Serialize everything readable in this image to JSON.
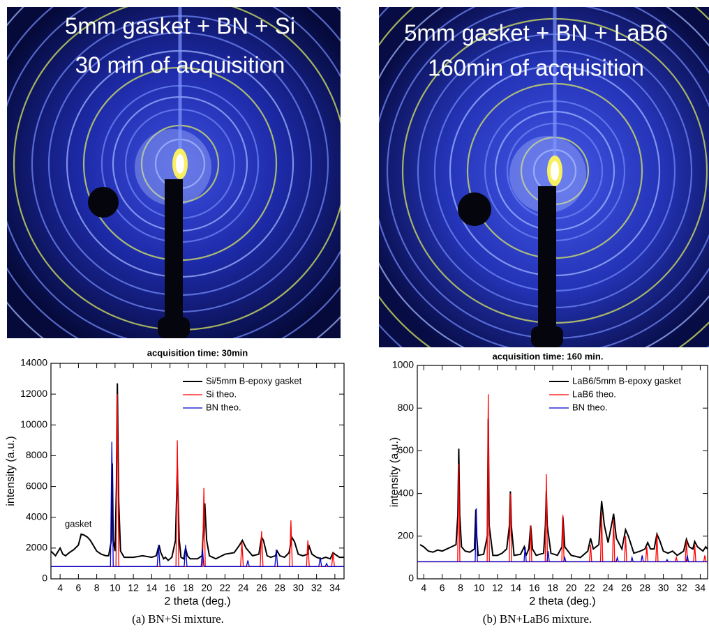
{
  "images": [
    {
      "title_lines": [
        "5mm gasket + BN + Si",
        "30 min of acquisition"
      ]
    },
    {
      "title_lines": [
        "5mm gasket + BN + LaB6",
        "160min of acquisition"
      ]
    }
  ],
  "chart_data": [
    {
      "type": "line",
      "title": "acquisition time: 30min",
      "xlabel": "2 theta (deg.)",
      "ylabel": "intensity (a.u.)",
      "annotation": "gasket",
      "xlim": [
        3,
        35
      ],
      "ylim": [
        0,
        14000
      ],
      "xticks": [
        4,
        6,
        8,
        10,
        12,
        14,
        16,
        18,
        20,
        22,
        24,
        26,
        28,
        30,
        32,
        34
      ],
      "yticks": [
        0,
        2000,
        4000,
        6000,
        8000,
        10000,
        12000,
        14000
      ],
      "legend": "upper right",
      "series": [
        {
          "name": "Si/5mm B-epoxy gasket",
          "color": "#000000",
          "x": [
            3,
            3.5,
            4,
            4.3,
            4.6,
            5,
            5.5,
            6,
            6.3,
            6.6,
            7,
            7.3,
            7.6,
            8,
            8.5,
            9,
            9.3,
            9.6,
            9.7,
            9.8,
            10,
            10.15,
            10.25,
            10.4,
            10.6,
            11,
            12,
            13,
            14,
            14.5,
            14.8,
            15,
            15.3,
            15.5,
            15.8,
            16.2,
            16.6,
            16.8,
            17,
            17.2,
            17.5,
            17.7,
            17.9,
            18.2,
            19,
            19.5,
            19.8,
            20,
            20.3,
            21,
            22,
            23,
            23.6,
            23.9,
            24.3,
            25,
            25.7,
            26,
            26.2,
            26.6,
            27,
            27.5,
            27.7,
            28,
            28.5,
            29,
            29.3,
            29.6,
            30,
            30.5,
            31,
            31.2,
            31.5,
            32,
            32.5,
            33,
            33.5,
            33.8,
            34,
            34.5,
            35
          ],
          "values": [
            1800,
            1500,
            2000,
            1600,
            1500,
            1700,
            1900,
            2200,
            2900,
            2850,
            2700,
            2500,
            2200,
            1800,
            1600,
            1500,
            1500,
            2500,
            7500,
            2500,
            1800,
            6000,
            12700,
            5000,
            1800,
            1400,
            1400,
            1500,
            1400,
            1500,
            2200,
            1700,
            1300,
            1400,
            1200,
            1400,
            2500,
            7200,
            2600,
            1400,
            1300,
            2000,
            1500,
            1300,
            1300,
            1500,
            4900,
            2500,
            1500,
            1300,
            1600,
            1700,
            2200,
            2500,
            2000,
            1500,
            1600,
            2700,
            2500,
            1500,
            1400,
            1500,
            1800,
            1500,
            1400,
            1700,
            2700,
            2400,
            1600,
            1500,
            1600,
            2100,
            1600,
            1400,
            1300,
            1400,
            1300,
            1700,
            1600,
            1400,
            1400
          ]
        },
        {
          "name": "Si theo.",
          "color": "#ff0000",
          "x": [
            3,
            10.1,
            10.25,
            10.4,
            16.65,
            16.8,
            16.95,
            19.55,
            19.7,
            19.85,
            23.7,
            23.85,
            24.0,
            25.85,
            26.0,
            26.15,
            29.05,
            29.2,
            29.35,
            30.9,
            31.05,
            31.2,
            33.65,
            33.8,
            33.95,
            35
          ],
          "values": [
            800,
            800,
            12000,
            800,
            800,
            9000,
            800,
            800,
            5900,
            800,
            800,
            2400,
            800,
            800,
            3100,
            800,
            800,
            3800,
            800,
            800,
            2500,
            800,
            800,
            1700,
            800,
            800
          ]
        },
        {
          "name": "BN theo.",
          "color": "#0000cc",
          "x": [
            3,
            9.5,
            9.65,
            9.8,
            14.6,
            14.75,
            14.9,
            17.55,
            17.7,
            17.85,
            19.4,
            19.55,
            19.7,
            24.35,
            24.5,
            24.65,
            27.45,
            27.6,
            27.75,
            32.25,
            32.4,
            32.55,
            32.95,
            33.1,
            33.25,
            35
          ],
          "values": [
            800,
            800,
            8900,
            800,
            800,
            2200,
            800,
            800,
            2200,
            800,
            800,
            1900,
            800,
            800,
            1200,
            800,
            800,
            1900,
            800,
            800,
            1400,
            800,
            800,
            1000,
            800,
            800
          ]
        }
      ]
    },
    {
      "type": "line",
      "title": "acquisition time: 160 min.",
      "xlabel": "2 theta (deg.)",
      "ylabel": "intensity (a.u.)",
      "xlim": [
        3.3,
        34.8
      ],
      "ylim": [
        0,
        1000
      ],
      "xticks": [
        4,
        6,
        8,
        10,
        12,
        14,
        16,
        18,
        20,
        22,
        24,
        26,
        28,
        30,
        32,
        34
      ],
      "yticks": [
        0,
        200,
        400,
        600,
        800,
        1000
      ],
      "legend": "upper right",
      "series": [
        {
          "name": "LaB6/5mm B-epoxy gasket",
          "color": "#000000",
          "x": [
            3.6,
            4,
            4.5,
            5,
            5.5,
            6,
            6.5,
            7,
            7.5,
            7.7,
            7.8,
            7.9,
            8.1,
            8.5,
            9,
            9.5,
            9.65,
            9.75,
            9.9,
            10.5,
            10.9,
            11.0,
            11.1,
            11.5,
            12,
            12.5,
            13,
            13.3,
            13.4,
            13.5,
            13.8,
            14.5,
            14.9,
            15.1,
            15.4,
            15.6,
            15.8,
            16.2,
            17,
            17.2,
            17.3,
            17.4,
            17.8,
            18.5,
            19.0,
            19.1,
            19.3,
            20,
            21,
            21.8,
            22.1,
            22.4,
            23,
            23.3,
            23.6,
            24,
            24.5,
            24.6,
            24.9,
            25.5,
            25.9,
            26.2,
            26.8,
            27.5,
            28,
            28.3,
            28.6,
            29,
            29.3,
            29.6,
            30,
            30.5,
            31,
            31.5,
            32.2,
            32.5,
            32.8,
            33.2,
            33.4,
            33.7,
            34,
            34.3,
            34.6,
            34.8
          ],
          "values": [
            160,
            150,
            130,
            125,
            135,
            130,
            140,
            150,
            160,
            300,
            610,
            300,
            150,
            130,
            125,
            140,
            325,
            200,
            110,
            115,
            200,
            750,
            250,
            110,
            110,
            120,
            140,
            250,
            410,
            250,
            110,
            115,
            150,
            110,
            140,
            250,
            140,
            110,
            120,
            250,
            410,
            250,
            120,
            110,
            150,
            290,
            150,
            110,
            100,
            130,
            190,
            140,
            160,
            365,
            250,
            170,
            280,
            305,
            190,
            140,
            230,
            200,
            120,
            130,
            140,
            170,
            140,
            140,
            210,
            180,
            130,
            120,
            130,
            110,
            130,
            185,
            150,
            140,
            175,
            150,
            140,
            130,
            150,
            140
          ]
        },
        {
          "name": "LaB6 theo.",
          "color": "#ff0000",
          "x": [
            3.3,
            7.68,
            7.8,
            7.92,
            10.88,
            11.0,
            11.12,
            13.28,
            13.4,
            13.52,
            15.48,
            15.6,
            15.72,
            17.18,
            17.3,
            17.42,
            18.98,
            19.1,
            19.22,
            21.98,
            22.1,
            22.22,
            23.18,
            23.3,
            23.42,
            24.48,
            24.6,
            24.72,
            25.78,
            25.9,
            26.02,
            28.08,
            28.2,
            28.32,
            29.18,
            29.3,
            29.42,
            31.28,
            31.4,
            31.52,
            32.38,
            32.5,
            32.62,
            33.28,
            33.4,
            33.52,
            34.38,
            34.5,
            34.62,
            34.8
          ],
          "values": [
            80,
            80,
            540,
            80,
            80,
            865,
            80,
            80,
            400,
            80,
            80,
            250,
            80,
            80,
            490,
            80,
            80,
            300,
            80,
            80,
            160,
            80,
            80,
            310,
            80,
            80,
            280,
            80,
            80,
            200,
            80,
            80,
            150,
            80,
            80,
            210,
            80,
            80,
            100,
            80,
            80,
            180,
            80,
            80,
            160,
            80,
            80,
            110,
            80,
            80
          ]
        },
        {
          "name": "BN theo.",
          "color": "#0000cc",
          "x": [
            3.3,
            9.58,
            9.7,
            9.82,
            14.88,
            15.0,
            15.12,
            17.38,
            17.5,
            17.62,
            19.18,
            19.3,
            19.42,
            24.88,
            25.0,
            25.12,
            26.48,
            26.6,
            26.72,
            27.58,
            27.7,
            27.82,
            30.28,
            30.4,
            30.52,
            32.48,
            32.6,
            32.72,
            34.8
          ],
          "values": [
            80,
            80,
            330,
            80,
            80,
            150,
            80,
            80,
            130,
            80,
            80,
            100,
            80,
            80,
            100,
            80,
            80,
            100,
            80,
            80,
            110,
            80,
            80,
            90,
            80,
            80,
            110,
            80,
            80
          ]
        }
      ]
    }
  ],
  "captions": [
    "(a)  BN+Si mixture.",
    "(b)  BN+LaB6 mixture."
  ]
}
